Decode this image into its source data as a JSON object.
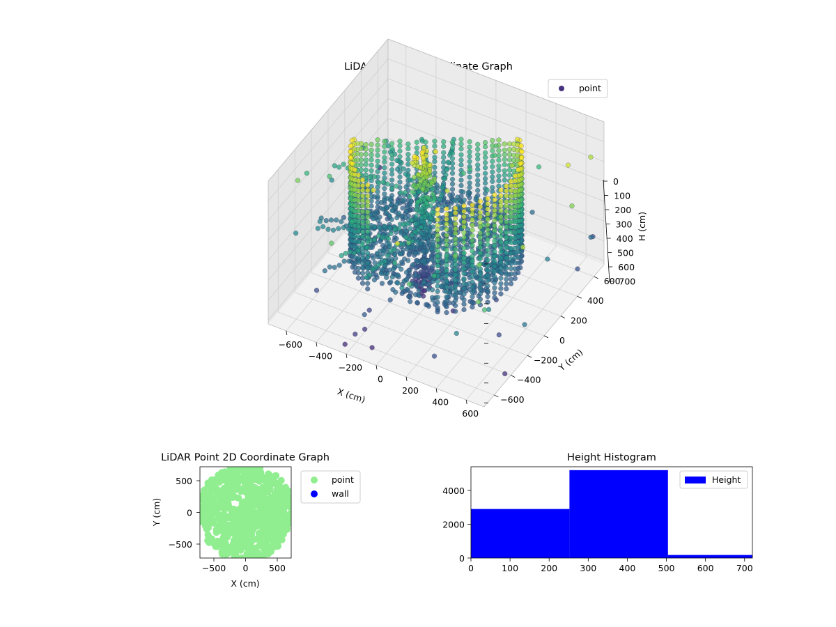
{
  "chart_data": [
    {
      "type": "scatter",
      "projection": "3d",
      "title": "LiDAR Point 3D Coordinate Graph",
      "xlabel": "X (cm)",
      "ylabel": "Y (cm)",
      "zlabel": "H (cm)",
      "xlim": [
        -720,
        720
      ],
      "ylim": [
        -720,
        720
      ],
      "zlim": [
        720,
        0
      ],
      "xticks": [
        "−600",
        "−400",
        "−200",
        "0",
        "200",
        "400",
        "600"
      ],
      "yticks": [
        "−600",
        "−400",
        "−200",
        "0",
        "200",
        "400",
        "600"
      ],
      "zticks": [
        "0",
        "100",
        "200",
        "300",
        "400",
        "500",
        "600",
        "700"
      ],
      "grid": true,
      "legend": {
        "position": "top-right",
        "entries": [
          "point"
        ]
      },
      "colormap": "viridis",
      "series": [
        {
          "name": "point",
          "color": "#46337e",
          "groups": [
            {
              "shape": "cylinder-wall",
              "radius_cm": 500,
              "height_cm": [
                0,
                520
              ]
            },
            {
              "shape": "central-column",
              "radius_cm": 60,
              "height_cm": [
                0,
                700
              ]
            },
            {
              "shape": "scattered-rays",
              "height_cm": [
                250,
                700
              ]
            },
            {
              "shape": "outliers",
              "height_cm": [
                0,
                720
              ]
            }
          ]
        }
      ]
    },
    {
      "type": "scatter",
      "title": "LiDAR Point 2D Coordinate Graph",
      "xlabel": "X (cm)",
      "ylabel": "Y (cm)",
      "xlim": [
        -720,
        720
      ],
      "ylim": [
        -720,
        720
      ],
      "xticks": [
        "−500",
        "0",
        "500"
      ],
      "yticks": [
        "−500",
        "0",
        "500"
      ],
      "legend": {
        "position": "outside-right",
        "entries": [
          "point",
          "wall"
        ]
      },
      "series": [
        {
          "name": "point",
          "color": "#90ee90"
        },
        {
          "name": "wall",
          "color": "#0000ff",
          "values": []
        }
      ]
    },
    {
      "type": "bar",
      "title": "Height Histogram",
      "xlim": [
        0,
        720
      ],
      "ylim": [
        0,
        5400
      ],
      "xticks": [
        "0",
        "100",
        "200",
        "300",
        "400",
        "500",
        "600",
        "700"
      ],
      "yticks": [
        "0",
        "2000",
        "4000"
      ],
      "legend": {
        "position": "top-right",
        "entries": [
          "Height"
        ]
      },
      "series": [
        {
          "name": "Height",
          "color": "#0000ff",
          "bins": [
            0,
            252,
            504,
            720
          ],
          "values": [
            2900,
            5200,
            180
          ]
        }
      ]
    }
  ]
}
